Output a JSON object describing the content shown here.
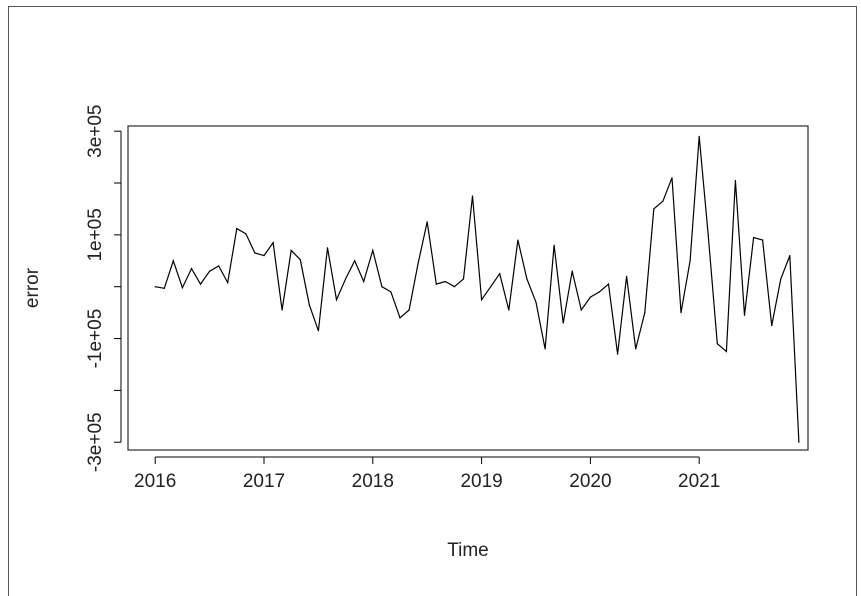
{
  "chart_data": {
    "type": "line",
    "title": "",
    "xlabel": "Time",
    "ylabel": "error",
    "xlim": [
      2015.75,
      2022.0
    ],
    "ylim": [
      -315000,
      310000
    ],
    "x_ticks": [
      {
        "value": 2016,
        "label": "2016"
      },
      {
        "value": 2017,
        "label": "2017"
      },
      {
        "value": 2018,
        "label": "2018"
      },
      {
        "value": 2019,
        "label": "2019"
      },
      {
        "value": 2020,
        "label": "2020"
      },
      {
        "value": 2021,
        "label": "2021"
      }
    ],
    "y_ticks": [
      {
        "value": -300000,
        "label": "-3e+05"
      },
      {
        "value": -100000,
        "label": "-1e+05"
      },
      {
        "value": 100000,
        "label": "1e+05"
      },
      {
        "value": 300000,
        "label": "3e+05"
      }
    ],
    "y_minor_ticks": [
      -200000,
      0,
      200000
    ],
    "line_color": "#000000",
    "grid": false,
    "series": [
      {
        "start": 2016.0,
        "step": 0.08333,
        "values": [
          0,
          -3000,
          50000,
          -2000,
          35000,
          5000,
          30000,
          40000,
          8000,
          112000,
          102000,
          65000,
          60000,
          85000,
          -45000,
          70000,
          52000,
          -35000,
          -85000,
          75000,
          -25000,
          15000,
          50000,
          10000,
          70000,
          0,
          -10000,
          -60000,
          -45000,
          45000,
          125000,
          5000,
          10000,
          0,
          15000,
          175000,
          -25000,
          0,
          25000,
          -45000,
          90000,
          15000,
          -30000,
          -120000,
          80000,
          -70000,
          30000,
          -45000,
          -20000,
          -10000,
          5000,
          -130000,
          20000,
          -120000,
          -50000,
          150000,
          165000,
          210000,
          -50000,
          50000,
          290000,
          100000,
          -110000,
          -125000,
          205000,
          -55000,
          95000,
          90000,
          -75000,
          15000,
          60000,
          -300000
        ]
      }
    ]
  }
}
